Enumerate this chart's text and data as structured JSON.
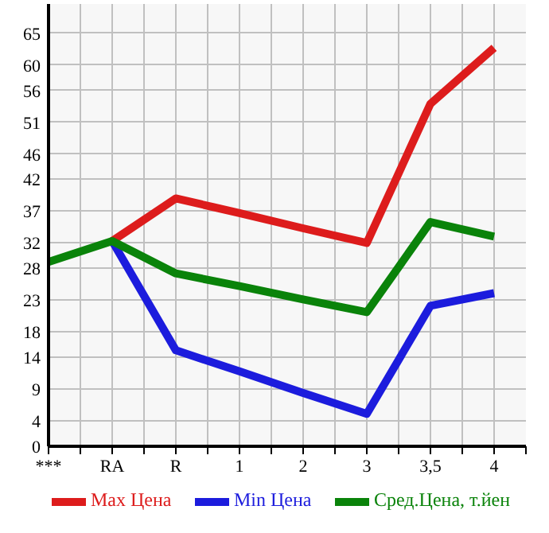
{
  "chart_data": {
    "type": "line",
    "categories": [
      "***",
      "RA",
      "R",
      "1",
      "2",
      "3",
      "3,5",
      "4"
    ],
    "series": [
      {
        "name": "Max Цена",
        "color": "#dd1c1c",
        "values": [
          null,
          32.3,
          39.0,
          36.7,
          34.3,
          32.0,
          53.9,
          62.7
        ]
      },
      {
        "name": "Min Цена",
        "color": "#1c1cdd",
        "values": [
          null,
          32.3,
          15.1,
          11.8,
          8.4,
          5.1,
          22.1,
          24.1
        ]
      },
      {
        "name": "Сред.Цена, т.йен",
        "color": "#0a830a",
        "values": [
          29.0,
          32.3,
          27.2,
          25.2,
          23.1,
          21.1,
          35.3,
          33.0
        ]
      }
    ],
    "ylim": [
      0,
      69.6
    ],
    "yticks": [
      0,
      4,
      9,
      14,
      18,
      23,
      28,
      32,
      37,
      42,
      46,
      51,
      56,
      60,
      65
    ],
    "grid": true,
    "legend": "bottom",
    "marker": "none",
    "line_style": "solid"
  }
}
